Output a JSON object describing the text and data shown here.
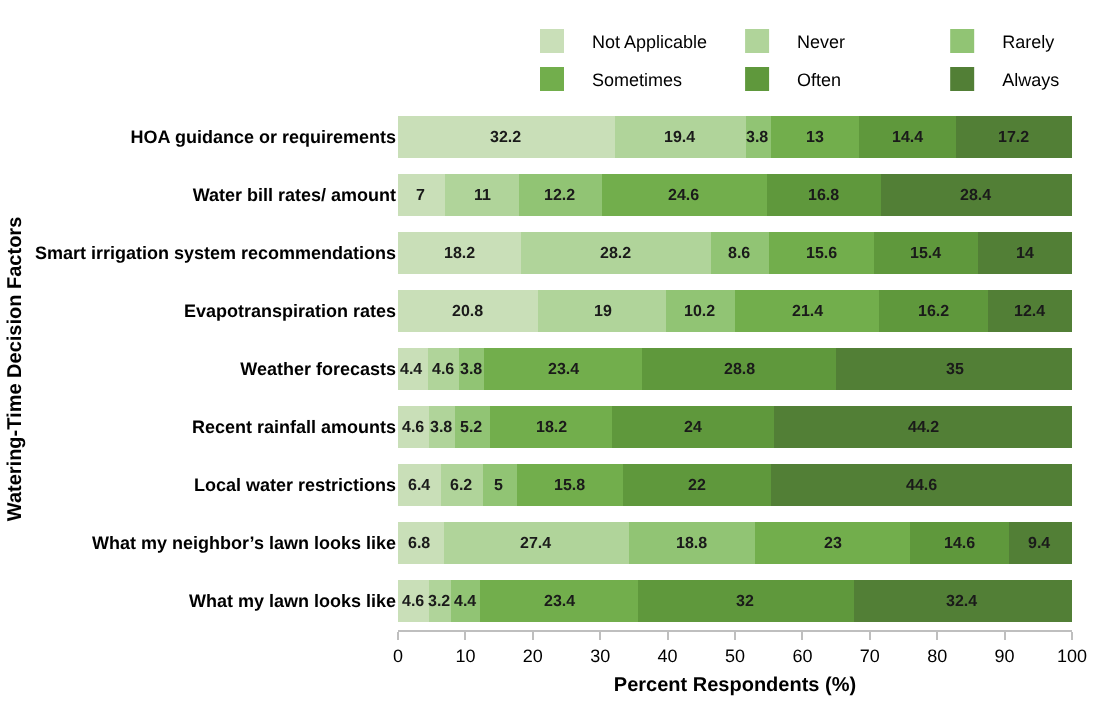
{
  "chart_data": {
    "type": "bar",
    "orientation": "horizontal",
    "stacked": true,
    "data_labels": true,
    "grid": false,
    "legend": "top",
    "xlabel": "Percent Respondents (%)",
    "ylabel": "Watering-Time Decision Factors",
    "categories": [
      "HOA guidance or requirements",
      "Water bill rates/ amount",
      "Smart irrigation system recommendations",
      "Evapotranspiration rates",
      "Weather forecasts",
      "Recent rainfall amounts",
      "Local water restrictions",
      "What my neighbor’s lawn looks like",
      "What my lawn looks like"
    ],
    "xlim": [
      0,
      100
    ],
    "xticks": [
      0,
      10,
      20,
      30,
      40,
      50,
      60,
      70,
      80,
      90,
      100
    ],
    "series": [
      {
        "name": "Not Applicable",
        "color": "#c9dfb8",
        "values": [
          32.2,
          7,
          18.2,
          20.8,
          4.4,
          4.6,
          6.4,
          6.8,
          4.6
        ]
      },
      {
        "name": "Never",
        "color": "#b0d49a",
        "values": [
          19.4,
          11,
          28.2,
          19,
          4.6,
          3.8,
          6.2,
          27.4,
          3.2
        ]
      },
      {
        "name": "Rarely",
        "color": "#91c474",
        "values": [
          3.8,
          12.2,
          8.6,
          10.2,
          3.8,
          5.2,
          5,
          18.8,
          4.4
        ]
      },
      {
        "name": "Sometimes",
        "color": "#72ae4c",
        "values": [
          13,
          24.6,
          15.6,
          21.4,
          23.4,
          18.2,
          15.8,
          23,
          23.4
        ]
      },
      {
        "name": "Often",
        "color": "#5f983c",
        "values": [
          14.4,
          16.8,
          15.4,
          16.2,
          28.8,
          24,
          22,
          14.6,
          32
        ]
      },
      {
        "name": "Always",
        "color": "#527f36",
        "values": [
          17.2,
          28.4,
          14,
          12.4,
          35,
          44.2,
          44.6,
          9.4,
          32.4
        ]
      }
    ]
  }
}
